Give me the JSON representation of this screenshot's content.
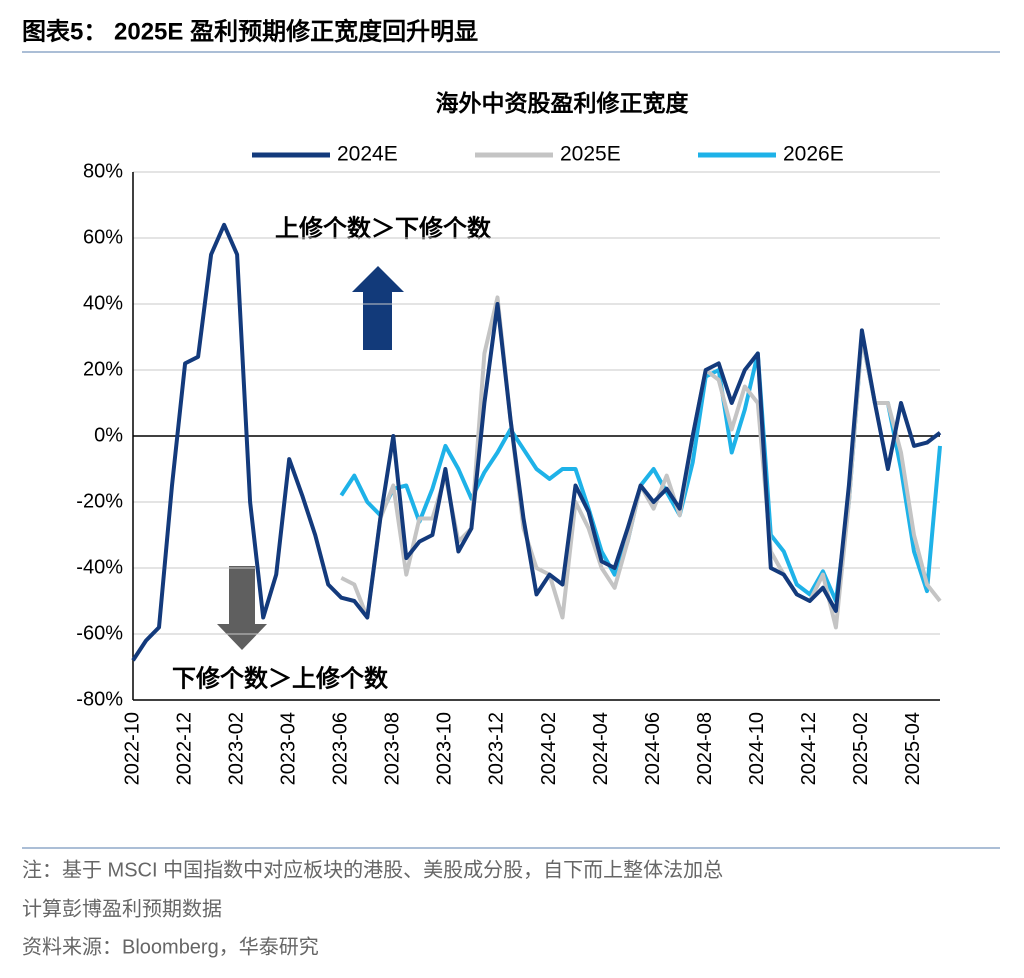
{
  "chart_data": {
    "type": "line",
    "header": "图表5： 2025E 盈利预期修正宽度回升明显",
    "title": "海外中资股盈利修正宽度",
    "annotations": [
      "上修个数＞下修个数",
      "下修个数＞上修个数"
    ],
    "notes": [
      "注：基于 MSCI 中国指数中对应板块的港股、美股成分股，自下而上整体法加总",
      "计算彭博盈利预期数据"
    ],
    "source": "资料来源：Bloomberg，华泰研究",
    "categories": [
      "2022-10",
      null,
      null,
      null,
      "2022-12",
      null,
      null,
      null,
      "2023-02",
      null,
      null,
      null,
      "2023-04",
      null,
      null,
      null,
      "2023-06",
      null,
      null,
      null,
      "2023-08",
      null,
      null,
      null,
      "2023-10",
      null,
      null,
      null,
      "2023-12",
      null,
      null,
      null,
      "2024-02",
      null,
      null,
      null,
      "2024-04",
      null,
      null,
      null,
      "2024-06",
      null,
      null,
      null,
      "2024-08",
      null,
      null,
      null,
      "2024-10",
      null,
      null,
      null,
      "2024-12",
      null,
      null,
      null,
      "2025-02",
      null,
      null,
      null,
      "2025-04",
      null,
      null
    ],
    "series": [
      {
        "name": "2024E",
        "color": "#133a7c",
        "values": [
          -68,
          -62,
          -58,
          -15,
          22,
          24,
          55,
          64,
          55,
          -20,
          -55,
          -42,
          -7,
          -18,
          -30,
          -45,
          -49,
          -50,
          -55,
          -25,
          0,
          -37,
          -32,
          -30,
          -10,
          -35,
          -28,
          10,
          40,
          5,
          -25,
          -48,
          -42,
          -45,
          -15,
          -23,
          -38,
          -40,
          -28,
          -15,
          -20,
          -16,
          -22,
          0,
          20,
          22,
          10,
          20,
          25,
          -40,
          -42,
          -48,
          -50,
          -46,
          -53,
          -15,
          32,
          10,
          -10,
          10,
          -3,
          -2,
          1
        ]
      },
      {
        "name": "2025E",
        "color": "#c4c4c4",
        "values": [
          null,
          null,
          null,
          null,
          null,
          null,
          null,
          null,
          null,
          null,
          null,
          null,
          null,
          null,
          null,
          null,
          -43,
          -45,
          -55,
          -25,
          -15,
          -42,
          -25,
          -25,
          -12,
          -32,
          -28,
          25,
          42,
          5,
          -28,
          -40,
          -42,
          -55,
          -20,
          -28,
          -40,
          -46,
          -32,
          -15,
          -22,
          -12,
          -24,
          0,
          20,
          17,
          2,
          15,
          10,
          -35,
          -42,
          -48,
          -50,
          -42,
          -58,
          -20,
          30,
          10,
          10,
          -5,
          -30,
          -45,
          -50
        ]
      },
      {
        "name": "2026E",
        "color": "#1eb2e8",
        "values": [
          null,
          null,
          null,
          null,
          null,
          null,
          null,
          null,
          null,
          null,
          null,
          null,
          null,
          null,
          null,
          null,
          -18,
          -12,
          -20,
          -24,
          -16,
          -15,
          -26,
          -16,
          -3,
          -10,
          -19,
          -11,
          -5,
          2,
          -4,
          -10,
          -13,
          -10,
          -10,
          -22,
          -35,
          -42,
          -32,
          -15,
          -10,
          -17,
          -24,
          -8,
          18,
          20,
          -5,
          8,
          25,
          -30,
          -35,
          -45,
          -48,
          -41,
          -50,
          -20,
          30,
          10,
          10,
          -10,
          -35,
          -47,
          -3
        ]
      }
    ],
    "ylim": [
      -80,
      80
    ],
    "yticks": [
      {
        "value": -80,
        "label": "-80%"
      },
      {
        "value": -60,
        "label": "-60%"
      },
      {
        "value": -40,
        "label": "-40%"
      },
      {
        "value": -20,
        "label": "-20%"
      },
      {
        "value": 0,
        "label": "0%"
      },
      {
        "value": 20,
        "label": "20%"
      },
      {
        "value": 40,
        "label": "40%"
      },
      {
        "value": 60,
        "label": "60%"
      },
      {
        "value": 80,
        "label": "80%"
      }
    ],
    "grid": true,
    "legend": "top"
  }
}
